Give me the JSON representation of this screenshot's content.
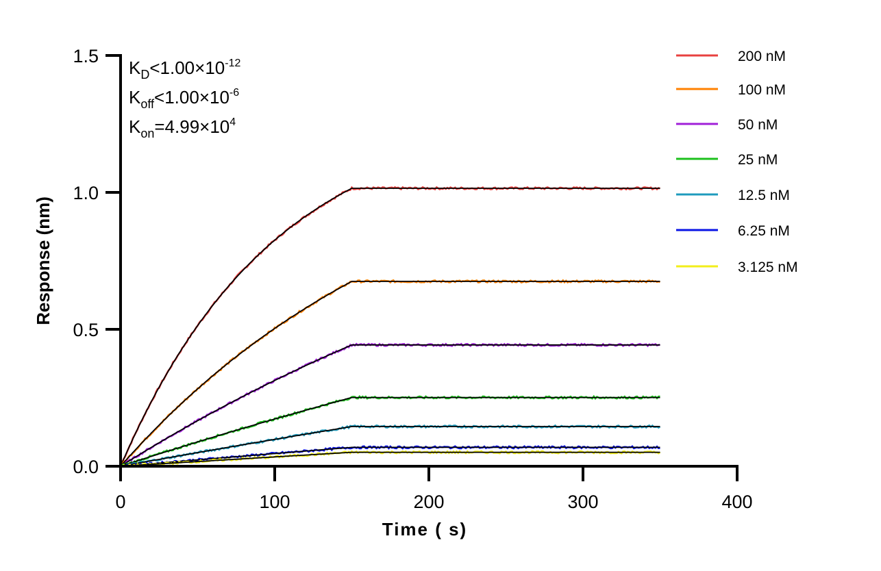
{
  "chart_data": {
    "type": "line",
    "xlabel": "Time ( s)",
    "ylabel": "Response (nm)",
    "xlim": [
      0,
      400
    ],
    "ylim": [
      0,
      1.5
    ],
    "x_ticks": [
      "0",
      "100",
      "200",
      "300",
      "400"
    ],
    "y_ticks": [
      "0.0",
      "0.5",
      "1.0",
      "1.5"
    ],
    "grid": false,
    "legend_position": "right",
    "association_end_s": 150,
    "dissociation_end_s": 350,
    "annotations": {
      "kd": {
        "k": "K",
        "sub": "D",
        "rel": "<1.00×10",
        "sup": "-12"
      },
      "koff": {
        "k": "K",
        "sub": "off",
        "rel": "<1.00×10",
        "sup": "-6"
      },
      "kon": {
        "k": "K",
        "sub": "on",
        "rel": "=4.99×10",
        "sup": "4"
      },
      "kon_value": 49900
    },
    "fit_color": "#000000",
    "series": [
      {
        "name": "200 nM",
        "conc_nM": 200,
        "plateau": 1.015,
        "color": "#e8413f"
      },
      {
        "name": "100 nM",
        "conc_nM": 100,
        "plateau": 0.675,
        "color": "#ff8000"
      },
      {
        "name": "50 nM",
        "conc_nM": 50,
        "plateau": 0.443,
        "color": "#a020d8"
      },
      {
        "name": "25 nM",
        "conc_nM": 25,
        "plateau": 0.251,
        "color": "#1cc01c"
      },
      {
        "name": "12.5 nM",
        "conc_nM": 12.5,
        "plateau": 0.145,
        "color": "#1f9bbd"
      },
      {
        "name": "6.25 nM",
        "conc_nM": 6.25,
        "plateau": 0.069,
        "color": "#0a14e6"
      },
      {
        "name": "3.125 nM",
        "conc_nM": 3.125,
        "plateau": 0.051,
        "color": "#f2ee1a"
      }
    ]
  }
}
